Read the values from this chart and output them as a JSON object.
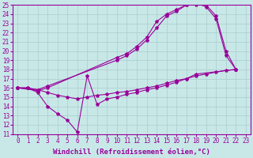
{
  "background_color": "#c8e8e8",
  "grid_color": "#aacccc",
  "line_color": "#990099",
  "marker": "*",
  "marker_size": 3,
  "xlim": [
    -0.5,
    23.5
  ],
  "ylim": [
    11,
    25
  ],
  "xlabel": "Windchill (Refroidissement éolien,°C)",
  "xlabel_fontsize": 6.5,
  "xticks": [
    0,
    1,
    2,
    3,
    4,
    5,
    6,
    7,
    8,
    9,
    10,
    11,
    12,
    13,
    14,
    15,
    16,
    17,
    18,
    19,
    20,
    21,
    22,
    23
  ],
  "yticks": [
    11,
    12,
    13,
    14,
    15,
    16,
    17,
    18,
    19,
    20,
    21,
    22,
    23,
    24,
    25
  ],
  "tick_fontsize": 5.5,
  "curve1_x": [
    0,
    1,
    2,
    3,
    4,
    5,
    6,
    7,
    8,
    9,
    10,
    11,
    12,
    13,
    14,
    15,
    16,
    17,
    18,
    22
  ],
  "curve1_y": [
    16.0,
    16.0,
    15.5,
    14.0,
    13.2,
    12.5,
    11.2,
    17.3,
    14.2,
    14.8,
    15.0,
    15.3,
    15.5,
    15.8,
    16.0,
    16.3,
    16.6,
    17.0,
    17.5,
    18.0
  ],
  "curve2_x": [
    0,
    2,
    3,
    10,
    11,
    12,
    13,
    14,
    15,
    16,
    17,
    18,
    19,
    20,
    21,
    22
  ],
  "curve2_y": [
    16.0,
    15.8,
    16.2,
    19.0,
    19.5,
    20.2,
    21.2,
    22.5,
    23.8,
    24.3,
    25.0,
    25.0,
    25.0,
    23.8,
    20.0,
    18.0
  ],
  "curve3_x": [
    0,
    2,
    3,
    10,
    11,
    12,
    13,
    14,
    15,
    16,
    17,
    18,
    19,
    20,
    21,
    22
  ],
  "curve3_y": [
    16.0,
    15.7,
    16.0,
    19.3,
    19.7,
    20.5,
    21.5,
    23.2,
    24.0,
    24.5,
    25.0,
    25.2,
    24.8,
    23.5,
    19.5,
    18.0
  ],
  "curve4_x": [
    0,
    1,
    2,
    3,
    4,
    5,
    6,
    7,
    8,
    9,
    10,
    11,
    12,
    13,
    14,
    15,
    16,
    17,
    18,
    19,
    20,
    21,
    22
  ],
  "curve4_y": [
    16.0,
    16.0,
    15.8,
    15.5,
    15.2,
    15.0,
    14.8,
    15.0,
    15.2,
    15.3,
    15.5,
    15.6,
    15.8,
    16.0,
    16.2,
    16.5,
    16.8,
    17.0,
    17.3,
    17.5,
    17.7,
    17.9,
    18.0
  ]
}
